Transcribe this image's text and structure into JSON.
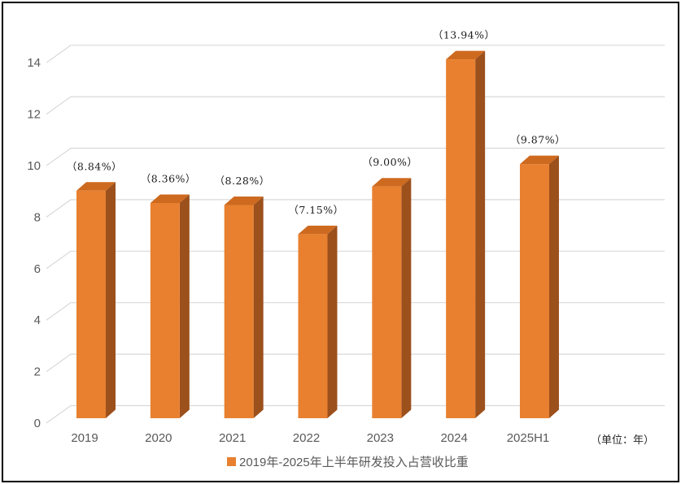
{
  "chart_data": {
    "type": "bar",
    "style": "3d-column",
    "title": "",
    "legend": "2019年-2025年上半年研发投入占营收比重",
    "unit_note": "（单位：年）",
    "categories": [
      "2019",
      "2020",
      "2021",
      "2022",
      "2023",
      "2024",
      "2025H1"
    ],
    "values": [
      8.84,
      8.36,
      8.28,
      7.15,
      9.0,
      13.94,
      9.87
    ],
    "point_labels": [
      "（8.84%）",
      "（8.36%）",
      "（8.28%）",
      "（7.15%）",
      "（9.00%）",
      "（13.94%）",
      "（9.87%）"
    ],
    "xlabel": "",
    "ylabel": "",
    "ylim": [
      0,
      14
    ],
    "y_ticks": [
      0,
      2,
      4,
      6,
      8,
      10,
      12,
      14
    ],
    "grid": true,
    "legend_position": "bottom-center",
    "colors": {
      "bar_front": "#E8802F",
      "bar_top": "#CE6A1F",
      "bar_side": "#9C501C",
      "gridline": "#D9D9D9",
      "axis_text": "#595959",
      "point_label_text": "#1A1A1A"
    }
  }
}
